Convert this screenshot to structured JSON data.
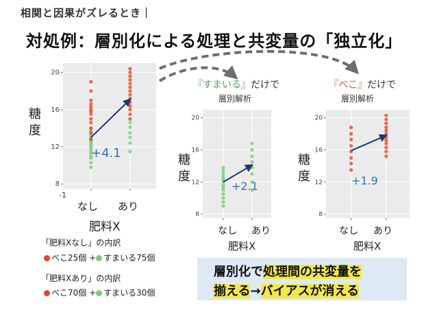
{
  "header": "相関と因果がズレるとき｜",
  "title": "対処例：層別化による処理と共変量の「独立化」",
  "colors": {
    "beko": "#e8452c",
    "sumairu": "#7ec87e",
    "arrow": "#1c3a6e",
    "effect": "#3a6fb5",
    "callout_bg": "#dfe8f5",
    "highlight": "#f2e84a"
  },
  "ylabel": "糖度",
  "xlabel": "肥料X",
  "panels": {
    "left": {
      "effect": "+4.1",
      "extra_tick": "-1"
    },
    "middle": {
      "subtitle_quoted": "『すまいる』",
      "subtitle_rest": "だけで",
      "subtitle2": "層別解析",
      "effect": "+2.1"
    },
    "right": {
      "subtitle_quoted": "『べこ』",
      "subtitle_rest": "だけで",
      "subtitle2": "層別解析",
      "effect": "+1.9"
    }
  },
  "notes": {
    "none_title": "「肥料Xなし」の内訳",
    "none_beko": "べこ25個",
    "none_sumairu": "すまいる75個",
    "yes_title": "「肥料Xあり」の内訳",
    "yes_beko": "べこ70個",
    "yes_sumairu": "すまいる30個",
    "plus": "+"
  },
  "callout": {
    "line1_highlight": "層別化",
    "line1_mid": "で",
    "line1_highlight2": "処理間の共変量を",
    "line2_highlight": "揃える",
    "line2_arrow": "→",
    "line2_rest": "バイアスが消える"
  },
  "chart_data": [
    {
      "type": "scatter",
      "categories": [
        "なし",
        "あり"
      ],
      "xlabel": "肥料X",
      "ylabel": "糖度",
      "yticks": [
        8,
        12,
        16,
        20
      ],
      "ylim": [
        7.5,
        21
      ],
      "grid": true,
      "series": [
        {
          "color": "#7ec87e",
          "x_index": 0,
          "values": [
            9.8,
            10.3,
            10.8,
            11.0,
            11.3,
            11.5,
            11.8,
            12.0,
            12.2,
            12.4,
            12.6,
            12.8,
            13.0,
            13.2,
            13.4,
            13.6,
            13.8,
            14.0
          ]
        },
        {
          "color": "#e8452c",
          "x_index": 0,
          "values": [
            12.8,
            13.5,
            14.0,
            14.6,
            15.0,
            15.5,
            15.8,
            16.0,
            16.3,
            16.6,
            17.0,
            18.0,
            19.0
          ]
        },
        {
          "color": "#7ec87e",
          "x_index": 1,
          "values": [
            11.5,
            12.4,
            13.0,
            13.5,
            14.1,
            14.6
          ]
        },
        {
          "color": "#e8452c",
          "x_index": 1,
          "values": [
            15.0,
            15.5,
            16.0,
            16.4,
            16.8,
            17.2,
            17.6,
            18.0,
            18.4,
            18.8,
            19.2,
            19.6,
            20.0,
            20.4
          ]
        }
      ],
      "trend": [
        13.0,
        17.1
      ]
    },
    {
      "type": "scatter",
      "categories": [
        "なし",
        "あり"
      ],
      "xlabel": "肥料X",
      "ylabel": "糖度",
      "yticks": [
        8,
        12,
        16,
        20
      ],
      "ylim": [
        7.5,
        21
      ],
      "grid": true,
      "series": [
        {
          "color": "#7ec87e",
          "x_index": 0,
          "values": [
            9.0,
            9.5,
            10.0,
            10.5,
            11.0,
            11.3,
            11.6,
            12.0,
            12.3,
            12.6,
            13.0,
            13.4,
            13.8
          ]
        },
        {
          "color": "#7ec87e",
          "x_index": 1,
          "values": [
            11.0,
            12.0,
            13.0,
            13.8,
            14.5,
            15.2,
            16.0,
            16.8
          ]
        }
      ],
      "trend": [
        12.0,
        14.1
      ]
    },
    {
      "type": "scatter",
      "categories": [
        "なし",
        "あり"
      ],
      "xlabel": "肥料X",
      "ylabel": "糖度",
      "yticks": [
        8,
        12,
        16,
        20
      ],
      "ylim": [
        7.5,
        21
      ],
      "grid": true,
      "series": [
        {
          "color": "#e8452c",
          "x_index": 0,
          "values": [
            13.5,
            14.3,
            15.0,
            15.8,
            16.5,
            17.3,
            18.0,
            18.8
          ]
        },
        {
          "color": "#e8452c",
          "x_index": 1,
          "values": [
            15.2,
            15.8,
            16.3,
            16.8,
            17.2,
            17.6,
            18.0,
            18.4,
            18.8,
            19.3,
            19.8,
            20.3
          ]
        }
      ],
      "trend": [
        15.9,
        17.8
      ]
    }
  ]
}
